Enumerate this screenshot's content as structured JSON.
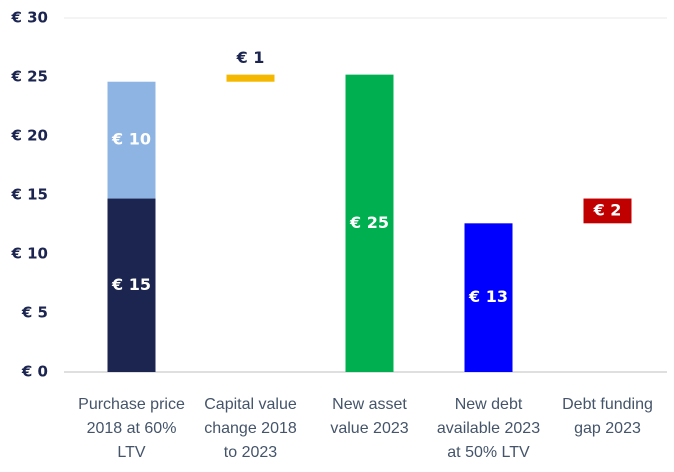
{
  "chart_data": {
    "type": "waterfall",
    "categories": [
      [
        "Purchase price",
        "2018 at 60%",
        "LTV"
      ],
      [
        "Capital value",
        "change 2018",
        "to 2023"
      ],
      [
        "New asset",
        "value 2023"
      ],
      [
        "New debt",
        "available 2023",
        "at 50% LTV"
      ],
      [
        "Debt funding",
        "gap 2023"
      ]
    ],
    "measure": [
      "absolute",
      "relative",
      "absolute",
      "absolute",
      "relative"
    ],
    "segments": [
      [
        {
          "value": 14.7,
          "label": "€ 15",
          "color": "#1b2550"
        },
        {
          "value": 9.9,
          "label": "€ 10",
          "color": "#8db4e2"
        }
      ],
      [
        {
          "value": 0.6,
          "label": "€ 1",
          "color": "#f5b800"
        }
      ],
      [
        {
          "value": 25.2,
          "label": "€ 25",
          "color": "#00b050"
        }
      ],
      [
        {
          "value": 12.6,
          "label": "€ 13",
          "color": "#0000ff"
        }
      ],
      [
        {
          "value": 2.1,
          "label": "€ 2",
          "color": "#c00000"
        }
      ]
    ],
    "ylim": [
      0,
      30
    ],
    "yticks": [
      {
        "value": 0,
        "label": "€ 0"
      },
      {
        "value": 5,
        "label": "€ 5"
      },
      {
        "value": 10,
        "label": "€ 10"
      },
      {
        "value": 15,
        "label": "€ 15"
      },
      {
        "value": 20,
        "label": "€ 20"
      },
      {
        "value": 25,
        "label": "€ 25"
      },
      {
        "value": 30,
        "label": "€ 30"
      }
    ],
    "grid": false
  }
}
